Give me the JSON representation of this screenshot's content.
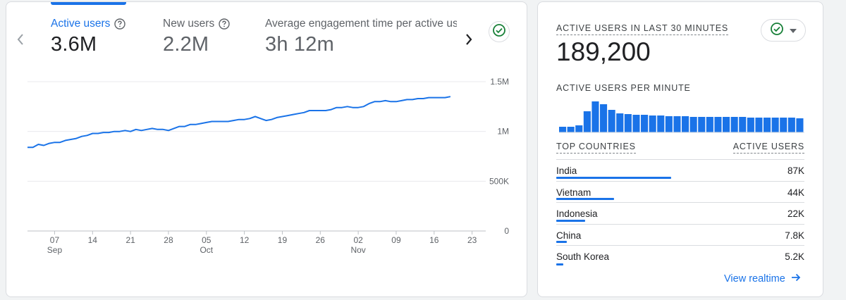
{
  "metrics": {
    "active_users": {
      "label": "Active users",
      "value": "3.6M"
    },
    "new_users": {
      "label": "New users",
      "value": "2.2M"
    },
    "engagement": {
      "label": "Average engagement time per active user",
      "value": "3h 12m"
    }
  },
  "chart_data": {
    "type": "line",
    "title": "",
    "series": [
      {
        "name": "Active users",
        "color": "#1a73e8",
        "values": [
          0.84,
          0.84,
          0.87,
          0.86,
          0.88,
          0.89,
          0.89,
          0.91,
          0.92,
          0.93,
          0.95,
          0.96,
          0.98,
          0.98,
          0.99,
          0.99,
          1.0,
          1.0,
          1.01,
          1.0,
          1.02,
          1.01,
          1.02,
          1.03,
          1.02,
          1.02,
          1.01,
          1.03,
          1.05,
          1.05,
          1.07,
          1.07,
          1.08,
          1.09,
          1.1,
          1.1,
          1.1,
          1.1,
          1.11,
          1.12,
          1.12,
          1.13,
          1.15,
          1.13,
          1.11,
          1.12,
          1.14,
          1.15,
          1.16,
          1.17,
          1.18,
          1.19,
          1.21,
          1.21,
          1.21,
          1.21,
          1.22,
          1.24,
          1.24,
          1.25,
          1.24,
          1.24,
          1.25,
          1.28,
          1.3,
          1.3,
          1.31,
          1.3,
          1.3,
          1.31,
          1.32,
          1.32,
          1.33,
          1.33,
          1.34,
          1.34,
          1.34,
          1.34,
          1.35
        ]
      }
    ],
    "x_ticks": [
      {
        "day": "07",
        "month": "Sep",
        "index": 5
      },
      {
        "day": "14",
        "month": "",
        "index": 12
      },
      {
        "day": "21",
        "month": "",
        "index": 19
      },
      {
        "day": "28",
        "month": "",
        "index": 26
      },
      {
        "day": "05",
        "month": "Oct",
        "index": 33
      },
      {
        "day": "12",
        "month": "",
        "index": 40
      },
      {
        "day": "19",
        "month": "",
        "index": 47
      },
      {
        "day": "26",
        "month": "",
        "index": 54
      },
      {
        "day": "02",
        "month": "Nov",
        "index": 61
      },
      {
        "day": "09",
        "month": "",
        "index": 68
      },
      {
        "day": "16",
        "month": "",
        "index": 75
      },
      {
        "day": "23",
        "month": "",
        "index": 82
      }
    ],
    "y_ticks": [
      {
        "label": "1.5M",
        "value": 1.5
      },
      {
        "label": "1M",
        "value": 1.0
      },
      {
        "label": "500K",
        "value": 0.5
      },
      {
        "label": "0",
        "value": 0
      }
    ],
    "ylim": [
      0,
      1.5
    ],
    "xlim": [
      0,
      84
    ],
    "ylabel": "",
    "xlabel": "",
    "grid": true
  },
  "realtime": {
    "title": "ACTIVE USERS IN LAST 30 MINUTES",
    "value": "189,200",
    "per_minute_label": "ACTIVE USERS PER MINUTE",
    "per_minute_values": [
      8,
      8,
      10,
      30,
      44,
      40,
      32,
      27,
      26,
      25,
      25,
      24,
      24,
      23,
      23,
      23,
      22,
      22,
      22,
      22,
      22,
      22,
      22,
      21,
      21,
      21,
      21,
      21,
      21,
      20
    ],
    "per_minute_max": 44,
    "countries_header": "TOP COUNTRIES",
    "users_header": "ACTIVE USERS",
    "countries": [
      {
        "name": "India",
        "value": "87K",
        "share": 1.0
      },
      {
        "name": "Vietnam",
        "value": "44K",
        "share": 0.5
      },
      {
        "name": "Indonesia",
        "value": "22K",
        "share": 0.25
      },
      {
        "name": "China",
        "value": "7.8K",
        "share": 0.09
      },
      {
        "name": "South Korea",
        "value": "5.2K",
        "share": 0.06
      }
    ],
    "view_link": "View realtime"
  },
  "icons": {
    "prev": "chevron-left-icon",
    "next": "chevron-right-icon",
    "help": "help-circle-icon",
    "check": "check-circle-icon",
    "dropdown": "caret-down-icon",
    "arrow": "arrow-right-icon"
  },
  "colors": {
    "accent": "#1a73e8",
    "check_green": "#188038"
  }
}
